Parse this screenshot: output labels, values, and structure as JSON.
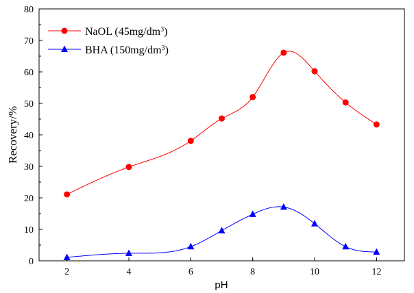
{
  "chart_data": {
    "type": "line",
    "xlabel": "pH",
    "ylabel": "Recovery/%",
    "xlim": [
      1.1,
      12.9
    ],
    "ylim": [
      0,
      80
    ],
    "xticks": [
      2,
      4,
      6,
      8,
      10,
      12
    ],
    "yticks": [
      0,
      10,
      20,
      30,
      40,
      50,
      60,
      70,
      80
    ],
    "grid": false,
    "legend_position": "top-left",
    "series": [
      {
        "name": "NaOL (45mg/dm3)",
        "legend": {
          "prefix": "NaOL (45mg/dm",
          "sup": "3",
          "suffix": ")"
        },
        "marker": "circle",
        "color": "#ff0000",
        "x": [
          2,
          4,
          6,
          7,
          8,
          9,
          10,
          11,
          12
        ],
        "y": [
          21.1,
          29.8,
          38.1,
          45.2,
          52.0,
          66.1,
          60.2,
          50.3,
          43.3
        ]
      },
      {
        "name": "BHA (150mg/dm3)",
        "legend": {
          "prefix": "BHA (150mg/dm",
          "sup": "3",
          "suffix": ")"
        },
        "marker": "triangle",
        "color": "#0000ff",
        "x": [
          2,
          4,
          6,
          7,
          8,
          9,
          10,
          11,
          12
        ],
        "y": [
          1.1,
          2.4,
          4.5,
          9.6,
          14.8,
          17.1,
          11.8,
          4.5,
          2.8
        ]
      }
    ]
  }
}
